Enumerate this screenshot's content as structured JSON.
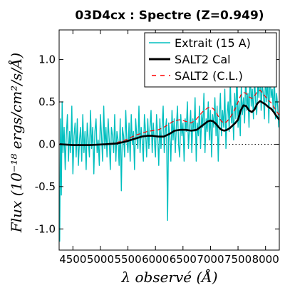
{
  "chart_data": {
    "type": "line",
    "title": "03D4cx : Spectre (Z=0.949)",
    "xlabel": "λ observé (Å)",
    "ylabel": "Flux (10⁻¹⁸ ergs/cm²/s/Å)",
    "xlim": [
      4250,
      8250
    ],
    "ylim": [
      -1.25,
      1.35
    ],
    "xticks": [
      "4500",
      "5000",
      "5500",
      "6000",
      "6500",
      "7000",
      "7500",
      "8000"
    ],
    "xtick_values": [
      4500,
      5000,
      5500,
      6000,
      6500,
      7000,
      7500,
      8000
    ],
    "yticks": [
      "1.0",
      "0.5",
      "0.0",
      "-0.5",
      "-1.0"
    ],
    "ytick_values": [
      1.0,
      0.5,
      0.0,
      -0.5,
      -1.0
    ],
    "zero_line": true,
    "grid": false,
    "legend_position": "top-right",
    "series": [
      {
        "name": "Extrait (15 A)",
        "color": "#00bfbf",
        "style": "solid",
        "x": [
          4260,
          4275,
          4290,
          4305,
          4320,
          4340,
          4360,
          4380,
          4400,
          4420,
          4440,
          4460,
          4480,
          4500,
          4520,
          4540,
          4560,
          4580,
          4600,
          4620,
          4640,
          4660,
          4680,
          4700,
          4720,
          4740,
          4760,
          4780,
          4800,
          4820,
          4840,
          4860,
          4880,
          4900,
          4920,
          4940,
          4960,
          4980,
          5000,
          5020,
          5040,
          5060,
          5080,
          5100,
          5120,
          5140,
          5160,
          5180,
          5200,
          5220,
          5240,
          5260,
          5280,
          5300,
          5320,
          5340,
          5360,
          5380,
          5400,
          5420,
          5440,
          5460,
          5480,
          5500,
          5520,
          5540,
          5560,
          5580,
          5600,
          5620,
          5640,
          5660,
          5680,
          5700,
          5720,
          5740,
          5760,
          5780,
          5800,
          5820,
          5840,
          5860,
          5880,
          5900,
          5920,
          5940,
          5960,
          5980,
          6000,
          6020,
          6040,
          6060,
          6080,
          6100,
          6120,
          6140,
          6160,
          6180,
          6200,
          6220,
          6240,
          6260,
          6280,
          6300,
          6320,
          6340,
          6360,
          6380,
          6400,
          6420,
          6440,
          6460,
          6480,
          6500,
          6520,
          6540,
          6560,
          6580,
          6600,
          6620,
          6640,
          6660,
          6680,
          6700,
          6720,
          6740,
          6760,
          6780,
          6800,
          6820,
          6840,
          6860,
          6880,
          6900,
          6920,
          6940,
          6960,
          6980,
          7000,
          7020,
          7040,
          7060,
          7080,
          7100,
          7120,
          7140,
          7160,
          7180,
          7200,
          7220,
          7240,
          7260,
          7280,
          7300,
          7320,
          7340,
          7360,
          7380,
          7400,
          7420,
          7440,
          7460,
          7480,
          7500,
          7520,
          7540,
          7560,
          7580,
          7600,
          7620,
          7640,
          7660,
          7680,
          7700,
          7720,
          7740,
          7760,
          7780,
          7800,
          7820,
          7840,
          7860,
          7880,
          7900,
          7920,
          7940,
          7960,
          7980,
          8000,
          8020,
          8040,
          8060,
          8080,
          8100,
          8120,
          8140,
          8160,
          8180,
          8200,
          8220,
          8240
        ],
        "y": [
          -1.15,
          0.3,
          -0.6,
          0.5,
          -0.1,
          0.2,
          -0.3,
          0.1,
          0.35,
          -0.2,
          0.15,
          -0.1,
          0.45,
          -0.35,
          0.1,
          0.25,
          -0.15,
          0.3,
          -0.25,
          0.05,
          0.2,
          -0.2,
          0.35,
          -0.1,
          0.15,
          -0.3,
          0.25,
          0.05,
          -0.15,
          0.4,
          -0.05,
          0.2,
          -0.35,
          0.15,
          0.3,
          -0.1,
          0.05,
          -0.25,
          0.35,
          0.1,
          -0.2,
          0.45,
          -0.05,
          0.2,
          -0.15,
          0.3,
          0.05,
          -0.3,
          0.2,
          0.1,
          -0.1,
          0.35,
          -0.2,
          0.15,
          0.05,
          -0.25,
          0.3,
          -0.55,
          0.2,
          0.1,
          -0.15,
          0.4,
          0.05,
          -0.1,
          0.25,
          -0.2,
          0.35,
          0.0,
          0.15,
          -0.3,
          0.3,
          0.1,
          -0.05,
          0.45,
          -0.1,
          0.2,
          0.05,
          -0.2,
          0.35,
          0.15,
          -0.15,
          0.3,
          -0.05,
          0.2,
          0.4,
          -0.1,
          0.25,
          0.05,
          -0.15,
          0.35,
          0.1,
          -0.25,
          0.3,
          -0.05,
          0.2,
          0.45,
          -0.1,
          0.15,
          0.3,
          -0.9,
          0.25,
          0.1,
          -0.2,
          0.4,
          0.05,
          0.3,
          -0.1,
          0.2,
          0.45,
          0.0,
          -0.15,
          0.35,
          0.1,
          0.25,
          -0.2,
          0.3,
          0.15,
          0.5,
          -0.05,
          0.2,
          0.4,
          -0.1,
          0.3,
          0.15,
          0.55,
          -0.2,
          0.25,
          0.1,
          0.45,
          -0.05,
          0.35,
          0.2,
          0.6,
          -0.1,
          0.3,
          0.15,
          0.5,
          0.05,
          0.4,
          -0.15,
          0.35,
          0.2,
          0.55,
          0.1,
          0.45,
          -0.2,
          0.3,
          0.6,
          0.1,
          0.4,
          0.2,
          0.65,
          -0.05,
          0.35,
          0.5,
          0.15,
          0.75,
          0.25,
          0.45,
          0.05,
          0.6,
          0.3,
          0.9,
          0.2,
          0.5,
          0.1,
          0.7,
          0.35,
          0.55,
          0.25,
          0.85,
          0.4,
          0.6,
          0.2,
          0.95,
          0.45,
          0.65,
          0.3,
          0.8,
          0.5,
          0.35,
          0.75,
          0.55,
          0.95,
          0.4,
          0.7,
          0.6,
          0.3,
          0.85,
          0.5,
          0.75,
          0.25,
          0.9,
          0.55,
          0.65,
          0.4,
          0.8,
          0.3,
          0.6,
          0.45,
          0.2
        ]
      },
      {
        "name": "SALT2 Cal",
        "color": "#000000",
        "style": "solid",
        "x": [
          4260,
          4500,
          4800,
          5100,
          5300,
          5450,
          5550,
          5650,
          5750,
          5850,
          5950,
          6050,
          6150,
          6250,
          6350,
          6450,
          6550,
          6650,
          6750,
          6850,
          6950,
          7000,
          7050,
          7100,
          7150,
          7200,
          7250,
          7300,
          7350,
          7400,
          7450,
          7500,
          7550,
          7600,
          7650,
          7700,
          7750,
          7800,
          7850,
          7900,
          7950,
          8000,
          8050,
          8100,
          8150,
          8200,
          8250
        ],
        "y": [
          0.0,
          -0.01,
          -0.01,
          0.0,
          0.01,
          0.03,
          0.05,
          0.07,
          0.09,
          0.1,
          0.1,
          0.09,
          0.09,
          0.12,
          0.16,
          0.17,
          0.17,
          0.16,
          0.17,
          0.22,
          0.27,
          0.28,
          0.27,
          0.24,
          0.2,
          0.17,
          0.16,
          0.17,
          0.19,
          0.22,
          0.25,
          0.29,
          0.4,
          0.46,
          0.45,
          0.4,
          0.38,
          0.41,
          0.48,
          0.51,
          0.49,
          0.47,
          0.44,
          0.42,
          0.38,
          0.33,
          0.29
        ]
      },
      {
        "name": "SALT2 (C.L.)",
        "color": "#ff0000",
        "style": "dashed",
        "x": [
          4260,
          4500,
          4800,
          5100,
          5300,
          5450,
          5550,
          5650,
          5750,
          5850,
          5950,
          6050,
          6150,
          6250,
          6350,
          6450,
          6550,
          6650,
          6750,
          6850,
          6950,
          7000,
          7050,
          7100,
          7150,
          7200,
          7250,
          7300,
          7350,
          7400,
          7450,
          7500,
          7550,
          7600,
          7650,
          7700,
          7750,
          7800,
          7850,
          7900,
          7950,
          8000,
          8050,
          8100,
          8150,
          8200,
          8250
        ],
        "y": [
          0.0,
          -0.01,
          -0.01,
          0.0,
          0.02,
          0.05,
          0.08,
          0.11,
          0.13,
          0.15,
          0.16,
          0.17,
          0.2,
          0.24,
          0.28,
          0.29,
          0.27,
          0.25,
          0.3,
          0.38,
          0.43,
          0.44,
          0.42,
          0.38,
          0.32,
          0.27,
          0.25,
          0.27,
          0.31,
          0.36,
          0.42,
          0.5,
          0.58,
          0.61,
          0.6,
          0.56,
          0.54,
          0.57,
          0.62,
          0.64,
          0.6,
          0.56,
          0.52,
          0.49,
          0.44,
          0.39,
          0.34
        ]
      }
    ]
  }
}
